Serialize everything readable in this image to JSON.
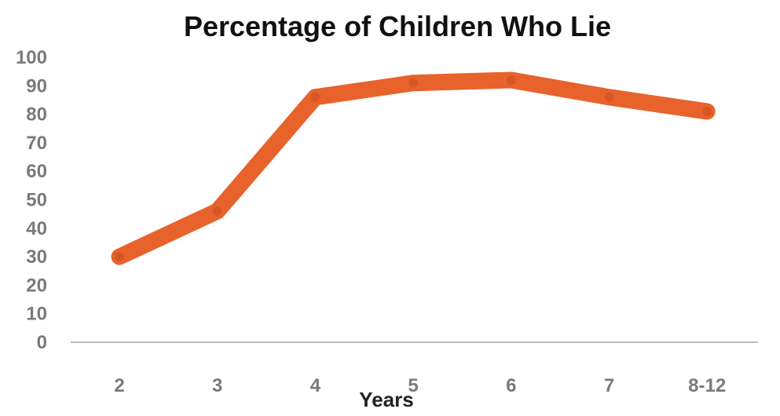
{
  "chart_data": {
    "type": "line",
    "title": "Percentage of Children Who Lie",
    "xlabel": "Years",
    "ylabel": "",
    "categories": [
      "2",
      "3",
      "4",
      "5",
      "6",
      "7",
      "8-12"
    ],
    "series": [
      {
        "values": [
          30,
          46,
          86,
          91,
          92,
          86,
          81
        ]
      }
    ],
    "ylim": [
      0,
      100
    ],
    "yticks": [
      0,
      10,
      20,
      30,
      40,
      50,
      60,
      70,
      80,
      90,
      100
    ],
    "grid": false,
    "legend": "none",
    "line_color": "#E8622C"
  }
}
